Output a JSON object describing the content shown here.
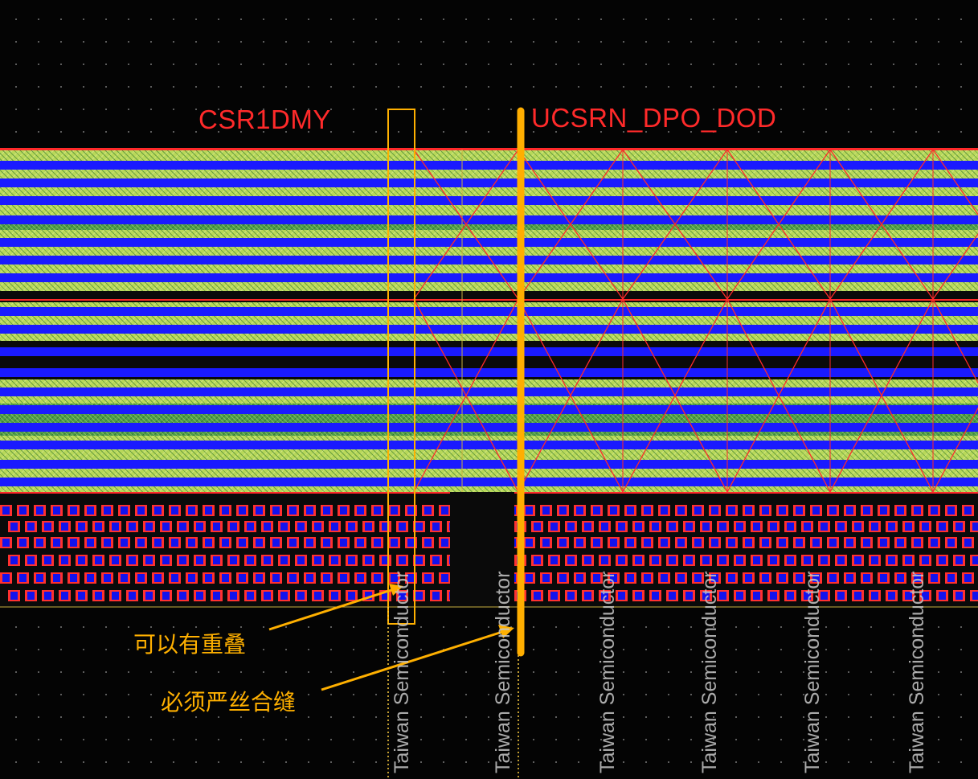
{
  "labels": {
    "left_cell": "CSR1DMY",
    "right_cell": "UCSRN_DPO_DOD"
  },
  "annotations": {
    "overlap_ok": "可以有重叠",
    "must_abut": "必须严丝合缝"
  },
  "watermark": {
    "text": "Taiwan Semiconductor"
  },
  "colors": {
    "background": "#040404",
    "label_red": "#ff2a2a",
    "annotation_orange": "#ffb000",
    "via_blue": "#1a1aff",
    "poly_yellow_green": "#b8d85a"
  }
}
